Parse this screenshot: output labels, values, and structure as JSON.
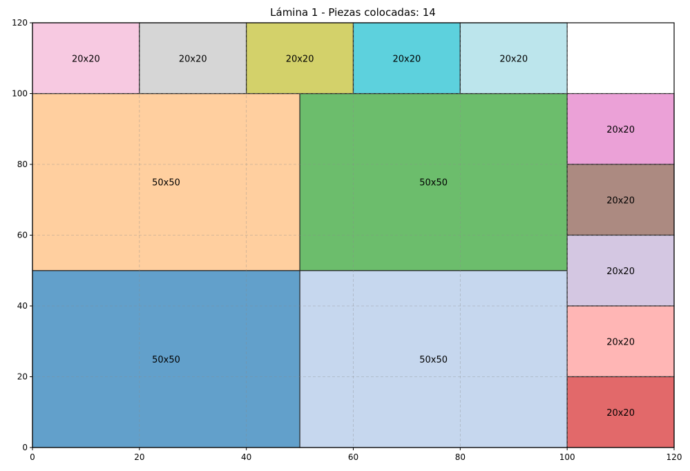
{
  "chart_data": {
    "type": "rectangles",
    "title": "Lámina 1 - Piezas colocadas: 14",
    "xlim": [
      0,
      120
    ],
    "ylim": [
      0,
      120
    ],
    "x_ticks": [
      0,
      20,
      40,
      60,
      80,
      100,
      120
    ],
    "y_ticks": [
      0,
      20,
      40,
      60,
      80,
      100,
      120
    ],
    "grid": true,
    "pieces": [
      {
        "x": 0,
        "y": 0,
        "w": 50,
        "h": 50,
        "label": "50x50",
        "color": "#62a0cb"
      },
      {
        "x": 50,
        "y": 0,
        "w": 50,
        "h": 50,
        "label": "50x50",
        "color": "#c6d7ee"
      },
      {
        "x": 0,
        "y": 50,
        "w": 50,
        "h": 50,
        "label": "50x50",
        "color": "#ffcf9f"
      },
      {
        "x": 50,
        "y": 50,
        "w": 50,
        "h": 50,
        "label": "50x50",
        "color": "#6cbd6c"
      },
      {
        "x": 0,
        "y": 100,
        "w": 20,
        "h": 20,
        "label": "20x20",
        "color": "#f7c9e1"
      },
      {
        "x": 20,
        "y": 100,
        "w": 20,
        "h": 20,
        "label": "20x20",
        "color": "#d6d6d6"
      },
      {
        "x": 40,
        "y": 100,
        "w": 20,
        "h": 20,
        "label": "20x20",
        "color": "#d3d16a"
      },
      {
        "x": 60,
        "y": 100,
        "w": 20,
        "h": 20,
        "label": "20x20",
        "color": "#5dd1dd"
      },
      {
        "x": 80,
        "y": 100,
        "w": 20,
        "h": 20,
        "label": "20x20",
        "color": "#bce5ec"
      },
      {
        "x": 100,
        "y": 80,
        "w": 20,
        "h": 20,
        "label": "20x20",
        "color": "#eba1d7"
      },
      {
        "x": 100,
        "y": 60,
        "w": 20,
        "h": 20,
        "label": "20x20",
        "color": "#ac8a81"
      },
      {
        "x": 100,
        "y": 40,
        "w": 20,
        "h": 20,
        "label": "20x20",
        "color": "#d4c7e2"
      },
      {
        "x": 100,
        "y": 20,
        "w": 20,
        "h": 20,
        "label": "20x20",
        "color": "#ffb6b5"
      },
      {
        "x": 100,
        "y": 0,
        "w": 20,
        "h": 20,
        "label": "20x20",
        "color": "#e2696a"
      }
    ]
  }
}
